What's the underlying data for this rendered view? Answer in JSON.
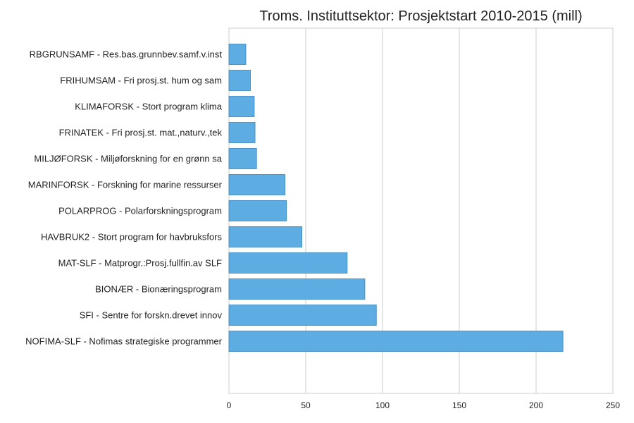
{
  "chart_data": {
    "type": "bar",
    "orientation": "horizontal",
    "title": "Troms. Instituttsektor: Prosjektstart 2010-2015 (mill)",
    "xlabel": "",
    "ylabel": "",
    "xlim": [
      0,
      250
    ],
    "xticks": [
      "0",
      "50",
      "100",
      "150",
      "200",
      "250"
    ],
    "grid": true,
    "bar_color": "#5dade2",
    "bar_edge_color": "#3a85c0",
    "categories": [
      "RBGRUNSAMF - Res.bas.grunnbev.samf.v.inst",
      "FRIHUMSAM - Fri prosj.st. hum og sam",
      "KLIMAFORSK - Stort program klima",
      "FRINATEK - Fri prosj.st. mat.,naturv.,tek",
      "MILJØFORSK - Miljøforskning for en grønn sa",
      "MARINFORSK - Forskning for marine ressurser",
      "POLARPROG - Polarforskningsprogram",
      "HAVBRUK2 - Stort program for havbruksfors",
      "MAT-SLF - Matprogr.:Prosj.fullfin.av SLF",
      "BIONÆR - Bionæringsprogram",
      "SFI - Sentre for forskn.drevet innov",
      "NOFIMA-SLF - Nofimas strategiske programmer"
    ],
    "values": [
      11,
      14,
      16.5,
      17,
      18,
      36.5,
      37.5,
      47.5,
      77,
      88.5,
      96,
      217.5
    ]
  }
}
